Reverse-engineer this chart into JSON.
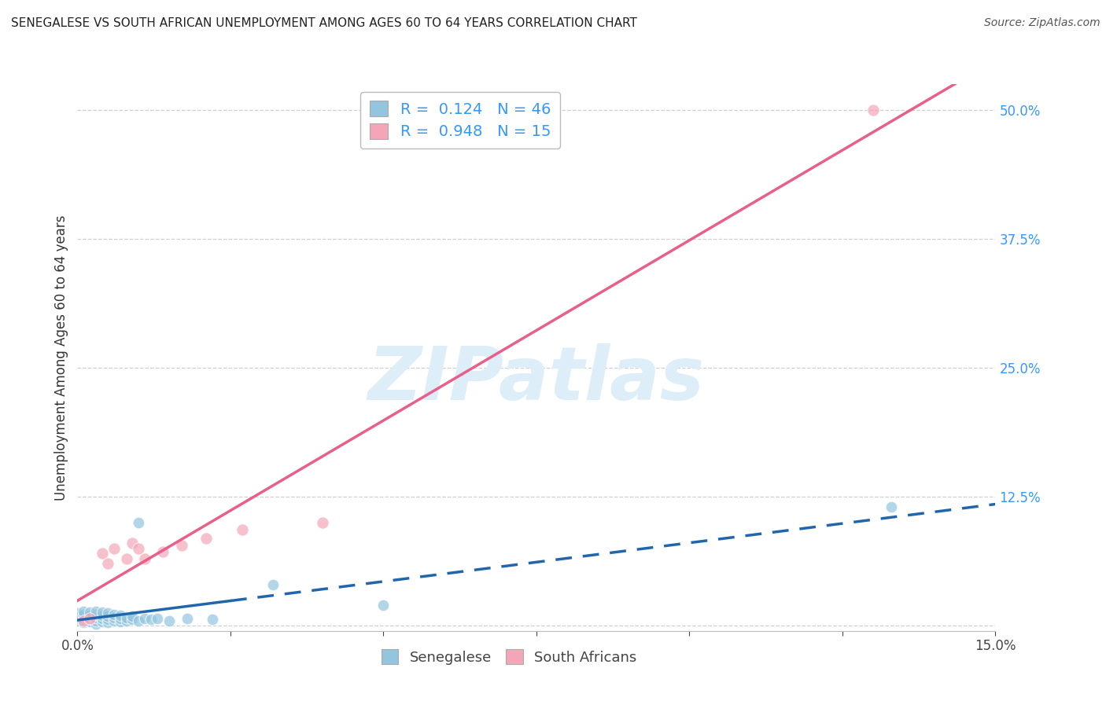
{
  "title": "SENEGALESE VS SOUTH AFRICAN UNEMPLOYMENT AMONG AGES 60 TO 64 YEARS CORRELATION CHART",
  "source": "Source: ZipAtlas.com",
  "ylabel": "Unemployment Among Ages 60 to 64 years",
  "xlim": [
    0.0,
    0.15
  ],
  "ylim": [
    -0.005,
    0.525
  ],
  "ytick_vals": [
    0.0,
    0.125,
    0.25,
    0.375,
    0.5
  ],
  "ytick_labels": [
    "",
    "12.5%",
    "25.0%",
    "37.5%",
    "50.0%"
  ],
  "xtick_vals": [
    0.0,
    0.025,
    0.05,
    0.075,
    0.1,
    0.125,
    0.15
  ],
  "xtick_labels": [
    "0.0%",
    "",
    "",
    "",
    "",
    "",
    "15.0%"
  ],
  "senegalese_R": 0.124,
  "senegalese_N": 46,
  "southafrican_R": 0.948,
  "southafrican_N": 15,
  "blue_color": "#92c5de",
  "pink_color": "#f4a6b8",
  "blue_line_color": "#2166ac",
  "pink_line_color": "#e8608a",
  "watermark_text": "ZIPatlas",
  "watermark_color": "#ddeef8",
  "background_color": "#ffffff",
  "grid_color": "#d0d0d0",
  "title_color": "#222222",
  "source_color": "#555555",
  "tick_color": "#3399ff",
  "legend_label_blue": "Senegalese",
  "legend_label_pink": "South Africans",
  "sen_x": [
    0.0,
    0.0,
    0.0,
    0.001,
    0.001,
    0.001,
    0.001,
    0.001,
    0.002,
    0.002,
    0.002,
    0.002,
    0.003,
    0.003,
    0.003,
    0.003,
    0.003,
    0.004,
    0.004,
    0.004,
    0.004,
    0.005,
    0.005,
    0.005,
    0.005,
    0.006,
    0.006,
    0.006,
    0.007,
    0.007,
    0.007,
    0.008,
    0.008,
    0.009,
    0.009,
    0.01,
    0.01,
    0.011,
    0.012,
    0.013,
    0.015,
    0.018,
    0.022,
    0.032,
    0.05,
    0.133
  ],
  "sen_y": [
    0.005,
    0.008,
    0.012,
    0.003,
    0.006,
    0.009,
    0.011,
    0.014,
    0.004,
    0.007,
    0.01,
    0.013,
    0.002,
    0.005,
    0.008,
    0.011,
    0.014,
    0.004,
    0.007,
    0.01,
    0.013,
    0.003,
    0.006,
    0.009,
    0.012,
    0.005,
    0.008,
    0.011,
    0.004,
    0.007,
    0.01,
    0.005,
    0.008,
    0.006,
    0.009,
    0.005,
    0.1,
    0.007,
    0.006,
    0.007,
    0.005,
    0.007,
    0.006,
    0.04,
    0.02,
    0.115
  ],
  "sa_x": [
    0.001,
    0.002,
    0.004,
    0.005,
    0.006,
    0.008,
    0.009,
    0.01,
    0.011,
    0.014,
    0.017,
    0.021,
    0.027,
    0.04,
    0.13
  ],
  "sa_y": [
    0.005,
    0.007,
    0.07,
    0.06,
    0.075,
    0.065,
    0.08,
    0.075,
    0.065,
    0.072,
    0.078,
    0.085,
    0.093,
    0.1,
    0.5
  ],
  "sen_line_x0": 0.0,
  "sen_line_x_solid_end": 0.025,
  "sen_line_x1": 0.15,
  "sa_line_x0": 0.0,
  "sa_line_x1": 0.15
}
